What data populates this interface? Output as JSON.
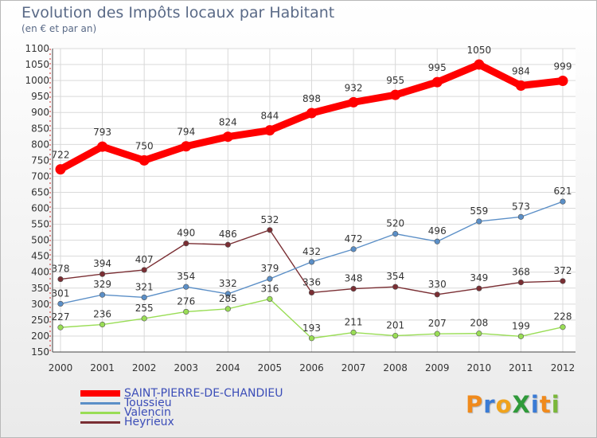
{
  "header": {
    "title": "Evolution des Impôts locaux par Habitant",
    "subtitle": "(en € et par an)"
  },
  "logo": {
    "text": "ProXiti"
  },
  "chart_data": {
    "type": "line",
    "title": "Evolution des Impôts locaux par Habitant",
    "subtitle": "(en € et par an)",
    "xlabel": "",
    "ylabel": "",
    "x": [
      "2000",
      "2001",
      "2002",
      "2003",
      "2004",
      "2005",
      "2006",
      "2007",
      "2008",
      "2009",
      "2010",
      "2011",
      "2012"
    ],
    "ylim": [
      150,
      1100
    ],
    "yticks": [
      150,
      200,
      250,
      300,
      350,
      400,
      450,
      500,
      550,
      600,
      650,
      700,
      750,
      800,
      850,
      900,
      950,
      1000,
      1050,
      1100
    ],
    "grid": true,
    "legend_position": "bottom-left",
    "series": [
      {
        "name": "SAINT-PIERRE-DE-CHANDIEU",
        "color": "#ff0000",
        "values": [
          722,
          793,
          750,
          794,
          824,
          844,
          898,
          932,
          955,
          995,
          1050,
          984,
          999
        ]
      },
      {
        "name": "Toussieu",
        "color": "#5b8fc7",
        "values": [
          301,
          329,
          321,
          354,
          332,
          379,
          432,
          472,
          520,
          496,
          559,
          573,
          621
        ]
      },
      {
        "name": "Valencin",
        "color": "#99dd55",
        "values": [
          227,
          236,
          255,
          276,
          285,
          316,
          193,
          211,
          201,
          207,
          208,
          199,
          228
        ]
      },
      {
        "name": "Heyrieux",
        "color": "#7a2e33",
        "values": [
          378,
          394,
          407,
          490,
          486,
          532,
          336,
          348,
          354,
          330,
          349,
          368,
          372
        ]
      }
    ]
  }
}
